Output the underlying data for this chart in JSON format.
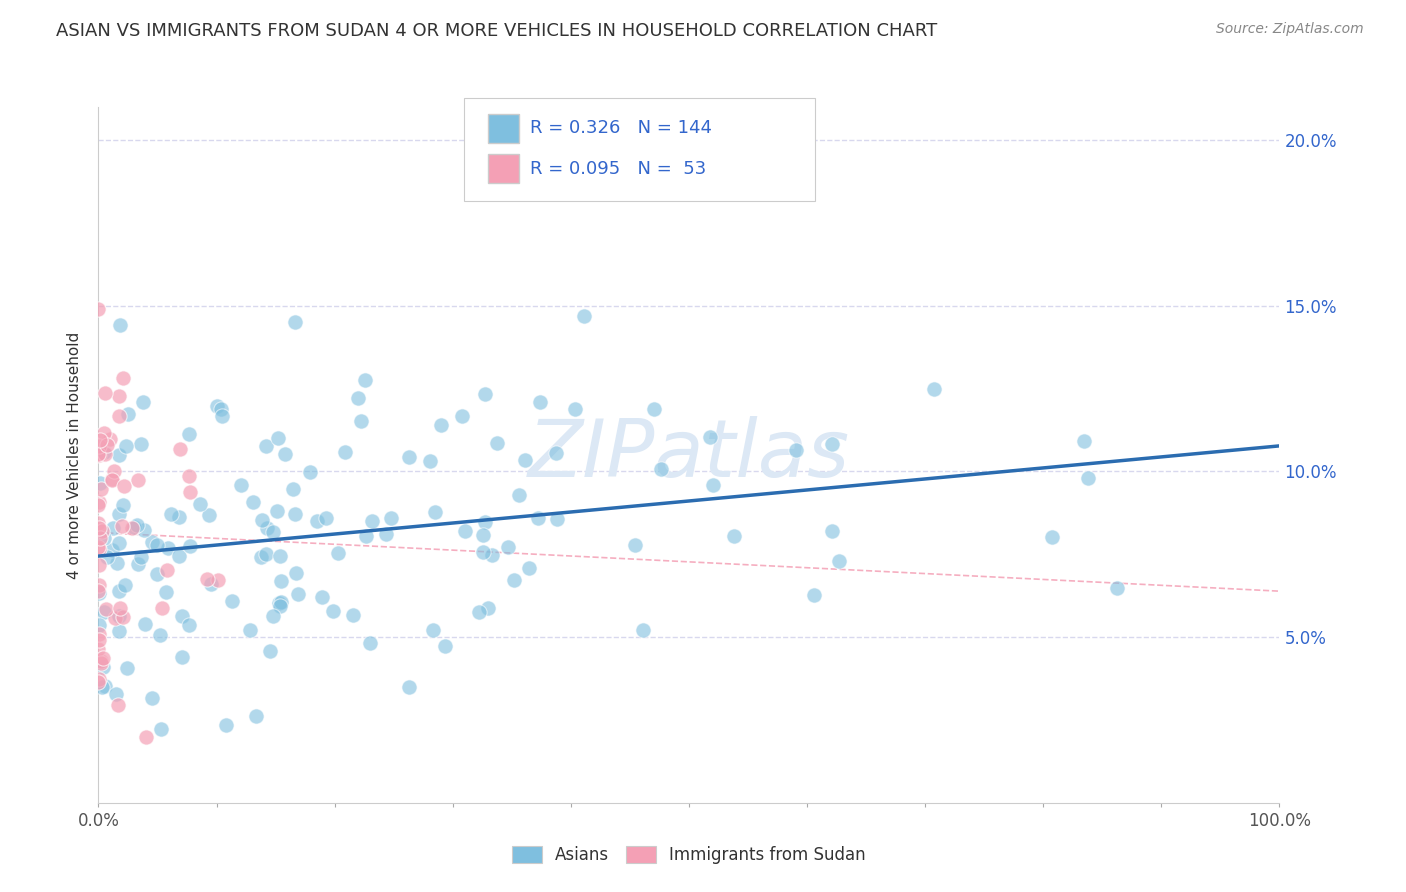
{
  "title": "ASIAN VS IMMIGRANTS FROM SUDAN 4 OR MORE VEHICLES IN HOUSEHOLD CORRELATION CHART",
  "source_text": "Source: ZipAtlas.com",
  "ylabel": "4 or more Vehicles in Household",
  "xlim": [
    0.0,
    1.0
  ],
  "ylim": [
    0.0,
    0.21
  ],
  "yticks": [
    0.0,
    0.05,
    0.1,
    0.15,
    0.2
  ],
  "ytick_labels": [
    "",
    "5.0%",
    "10.0%",
    "15.0%",
    "20.0%"
  ],
  "xticks": [
    0.0,
    0.1,
    0.2,
    0.3,
    0.4,
    0.5,
    0.6,
    0.7,
    0.8,
    0.9,
    1.0
  ],
  "xtick_labels": [
    "0.0%",
    "",
    "",
    "",
    "",
    "",
    "",
    "",
    "",
    "",
    "100.0%"
  ],
  "asian_R": 0.326,
  "asian_N": 144,
  "sudan_R": 0.095,
  "sudan_N": 53,
  "blue_color": "#7fbfdf",
  "pink_color": "#f4a0b5",
  "regression_line_color": "#2b6cb0",
  "sudan_line_color": "#f4a0b5",
  "grid_color": "#d8d8ee",
  "background_color": "#ffffff",
  "legend_r_n_color": "#3366cc",
  "watermark_color": "#dce8f5",
  "title_color": "#333333",
  "source_color": "#888888",
  "ylabel_color": "#333333"
}
